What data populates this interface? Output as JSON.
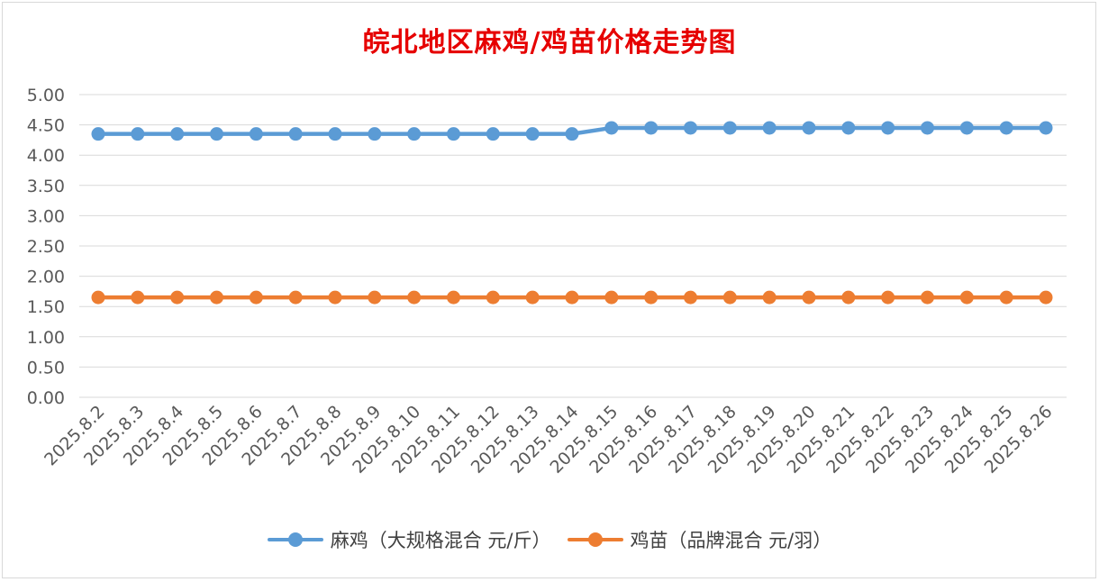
{
  "chart_data": {
    "type": "line",
    "title": "皖北地区麻鸡/鸡苗价格走势图",
    "categories": [
      "2025.8.2",
      "2025.8.3",
      "2025.8.4",
      "2025.8.5",
      "2025.8.6",
      "2025.8.7",
      "2025.8.8",
      "2025.8.9",
      "2025.8.10",
      "2025.8.11",
      "2025.8.12",
      "2025.8.13",
      "2025.8.14",
      "2025.8.15",
      "2025.8.16",
      "2025.8.17",
      "2025.8.18",
      "2025.8.19",
      "2025.8.20",
      "2025.8.21",
      "2025.8.22",
      "2025.8.23",
      "2025.8.24",
      "2025.8.25",
      "2025.8.26"
    ],
    "y_ticks": [
      "0.00",
      "0.50",
      "1.00",
      "1.50",
      "2.00",
      "2.50",
      "3.00",
      "3.50",
      "4.00",
      "4.50",
      "5.00"
    ],
    "ylim": [
      0,
      5
    ],
    "grid": true,
    "legend_position": "bottom",
    "series": [
      {
        "name": "麻鸡（大规格混合 元/斤）",
        "color": "#5b9bd5",
        "values": [
          4.35,
          4.35,
          4.35,
          4.35,
          4.35,
          4.35,
          4.35,
          4.35,
          4.35,
          4.35,
          4.35,
          4.35,
          4.35,
          4.45,
          4.45,
          4.45,
          4.45,
          4.45,
          4.45,
          4.45,
          4.45,
          4.45,
          4.45,
          4.45,
          4.45
        ]
      },
      {
        "name": "鸡苗（品牌混合 元/羽）",
        "color": "#ed7d31",
        "values": [
          1.65,
          1.65,
          1.65,
          1.65,
          1.65,
          1.65,
          1.65,
          1.65,
          1.65,
          1.65,
          1.65,
          1.65,
          1.65,
          1.65,
          1.65,
          1.65,
          1.65,
          1.65,
          1.65,
          1.65,
          1.65,
          1.65,
          1.65,
          1.65,
          1.65
        ]
      }
    ]
  }
}
